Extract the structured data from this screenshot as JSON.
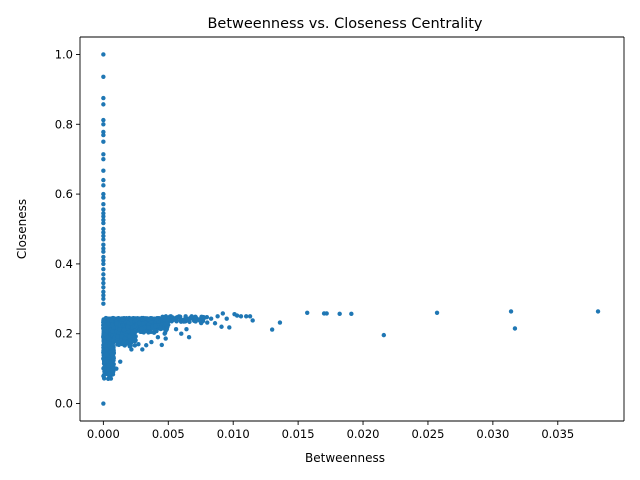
{
  "chart_data": {
    "type": "scatter",
    "title": "Betweenness vs. Closeness Centrality",
    "xlabel": "Betweenness",
    "ylabel": "Closeness",
    "xlim": [
      -0.0018,
      0.0401
    ],
    "ylim": [
      -0.05,
      1.05
    ],
    "xticks": [
      {
        "value": 0.0,
        "label": "0.000"
      },
      {
        "value": 0.005,
        "label": "0.005"
      },
      {
        "value": 0.01,
        "label": "0.010"
      },
      {
        "value": 0.015,
        "label": "0.015"
      },
      {
        "value": 0.02,
        "label": "0.020"
      },
      {
        "value": 0.025,
        "label": "0.025"
      },
      {
        "value": 0.03,
        "label": "0.030"
      },
      {
        "value": 0.035,
        "label": "0.035"
      }
    ],
    "yticks": [
      {
        "value": 0.0,
        "label": "0.0"
      },
      {
        "value": 0.2,
        "label": "0.2"
      },
      {
        "value": 0.4,
        "label": "0.4"
      },
      {
        "value": 0.6,
        "label": "0.6"
      },
      {
        "value": 0.8,
        "label": "0.8"
      },
      {
        "value": 1.0,
        "label": "1.0"
      }
    ],
    "grid": false,
    "color": "#1f77b4",
    "points": [
      [
        0,
        1.0
      ],
      [
        0,
        0.936
      ],
      [
        0,
        0.875
      ],
      [
        0,
        0.857
      ],
      [
        0,
        0.812
      ],
      [
        0,
        0.8
      ],
      [
        0,
        0.778
      ],
      [
        0,
        0.769
      ],
      [
        0,
        0.75
      ],
      [
        0,
        0.714
      ],
      [
        0,
        0.7
      ],
      [
        0,
        0.667
      ],
      [
        0,
        0.64
      ],
      [
        0,
        0.625
      ],
      [
        0,
        0.6
      ],
      [
        0,
        0.59
      ],
      [
        0,
        0.571
      ],
      [
        0,
        0.556
      ],
      [
        0,
        0.545
      ],
      [
        0,
        0.536
      ],
      [
        0,
        0.526
      ],
      [
        0,
        0.517
      ],
      [
        0,
        0.5
      ],
      [
        0,
        0.49
      ],
      [
        0,
        0.48
      ],
      [
        0,
        0.47
      ],
      [
        0,
        0.455
      ],
      [
        0,
        0.444
      ],
      [
        0,
        0.435
      ],
      [
        0,
        0.42
      ],
      [
        0,
        0.41
      ],
      [
        0,
        0.4
      ],
      [
        0,
        0.385
      ],
      [
        0,
        0.37
      ],
      [
        0,
        0.357
      ],
      [
        0,
        0.345
      ],
      [
        0,
        0.333
      ],
      [
        0,
        0.32
      ],
      [
        0,
        0.31
      ],
      [
        0,
        0.3
      ],
      [
        0,
        0.286
      ],
      [
        0,
        0.0
      ],
      [
        0.0157,
        0.26
      ],
      [
        0.017,
        0.258
      ],
      [
        0.0172,
        0.258
      ],
      [
        0.0182,
        0.257
      ],
      [
        0.0191,
        0.257
      ],
      [
        0.0216,
        0.196
      ],
      [
        0.0257,
        0.26
      ],
      [
        0.0314,
        0.264
      ],
      [
        0.0317,
        0.215
      ],
      [
        0.0381,
        0.264
      ],
      [
        0.013,
        0.212
      ],
      [
        0.0136,
        0.232
      ],
      [
        0.0115,
        0.238
      ],
      [
        0.0113,
        0.25
      ],
      [
        0.011,
        0.25
      ],
      [
        0.0106,
        0.25
      ],
      [
        0.0103,
        0.252
      ],
      [
        0.0101,
        0.256
      ],
      [
        0.0097,
        0.218
      ],
      [
        0.0095,
        0.243
      ],
      [
        0.0092,
        0.258
      ],
      [
        0.0091,
        0.22
      ],
      [
        0.0088,
        0.25
      ],
      [
        0.0086,
        0.23
      ],
      [
        0.0083,
        0.243
      ],
      [
        0.008,
        0.232
      ],
      [
        0.0077,
        0.245
      ],
      [
        0.0074,
        0.238
      ],
      [
        0.0071,
        0.245
      ],
      [
        0.0068,
        0.25
      ],
      [
        0.0066,
        0.19
      ],
      [
        0.0064,
        0.213
      ],
      [
        0.0062,
        0.235
      ],
      [
        0.006,
        0.2
      ],
      [
        0.0058,
        0.248
      ],
      [
        0.0056,
        0.213
      ],
      [
        0.0054,
        0.24
      ],
      [
        0.0052,
        0.25
      ],
      [
        0.0048,
        0.186
      ],
      [
        0.0045,
        0.168
      ],
      [
        0.0042,
        0.19
      ],
      [
        0.004,
        0.222
      ],
      [
        0.0037,
        0.176
      ],
      [
        0.0033,
        0.167
      ],
      [
        0.003,
        0.155
      ],
      [
        0.0027,
        0.17
      ],
      [
        0.0024,
        0.185
      ],
      [
        0.0021,
        0.166
      ],
      [
        0.0018,
        0.175
      ],
      [
        0.0013,
        0.12
      ],
      [
        0.001,
        0.1
      ],
      [
        0.0008,
        0.13
      ],
      [
        0.0006,
        0.16
      ],
      [
        0.0004,
        0.11
      ],
      [
        0.0002,
        0.14
      ]
    ],
    "dense_clusters": [
      {
        "x_range": [
          0,
          0.0008
        ],
        "y_range": [
          0.065,
          0.24
        ],
        "count": 700
      },
      {
        "x_range": [
          0,
          0.0025
        ],
        "y_range": [
          0.15,
          0.245
        ],
        "count": 500
      },
      {
        "x_range": [
          0.0015,
          0.005
        ],
        "y_range": [
          0.2,
          0.245
        ],
        "count": 300
      },
      {
        "x_range": [
          0.004,
          0.008
        ],
        "y_range": [
          0.23,
          0.25
        ],
        "count": 60
      }
    ]
  }
}
